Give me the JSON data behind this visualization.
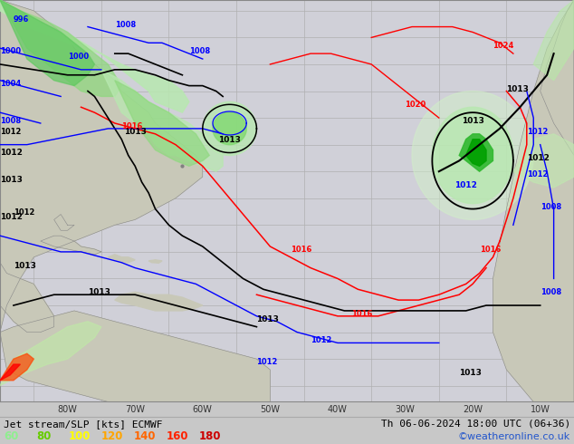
{
  "title_left": "Jet stream/SLP [kts] ECMWF",
  "title_right": "Th 06-06-2024 18:00 UTC (06+36)",
  "copyright": "©weatheronline.co.uk",
  "legend_values": [
    "60",
    "80",
    "100",
    "120",
    "140",
    "160",
    "180"
  ],
  "legend_colors": [
    "#90ee90",
    "#66cc00",
    "#ffff00",
    "#ffa500",
    "#ff6600",
    "#ff2200",
    "#cc0000"
  ],
  "bg_color": "#c8c8c8",
  "map_bg": "#d8d8d8",
  "ocean_color": "#d0d0d8",
  "land_color": "#c8c8b8",
  "green_light": "#b8e8b0",
  "green_mid": "#80d870",
  "green_dark": "#40b840",
  "grid_color": "#b0b0b0",
  "figsize": [
    6.34,
    4.9
  ],
  "dpi": 100,
  "bottom_bar_color": "#c0c0c0",
  "title_font_size": 8,
  "tick_font_size": 7,
  "label_font_size": 6,
  "copyright_color": "#2255cc",
  "copyright_font_size": 8,
  "xlim": [
    -90,
    -5
  ],
  "ylim": [
    -8,
    67
  ],
  "lon_ticks": [
    -80,
    -70,
    -60,
    -50,
    -40,
    -30,
    -20,
    -10
  ],
  "lon_labels": [
    "80W",
    "70W",
    "60W",
    "50W",
    "40W",
    "30W",
    "20W",
    "10W"
  ]
}
